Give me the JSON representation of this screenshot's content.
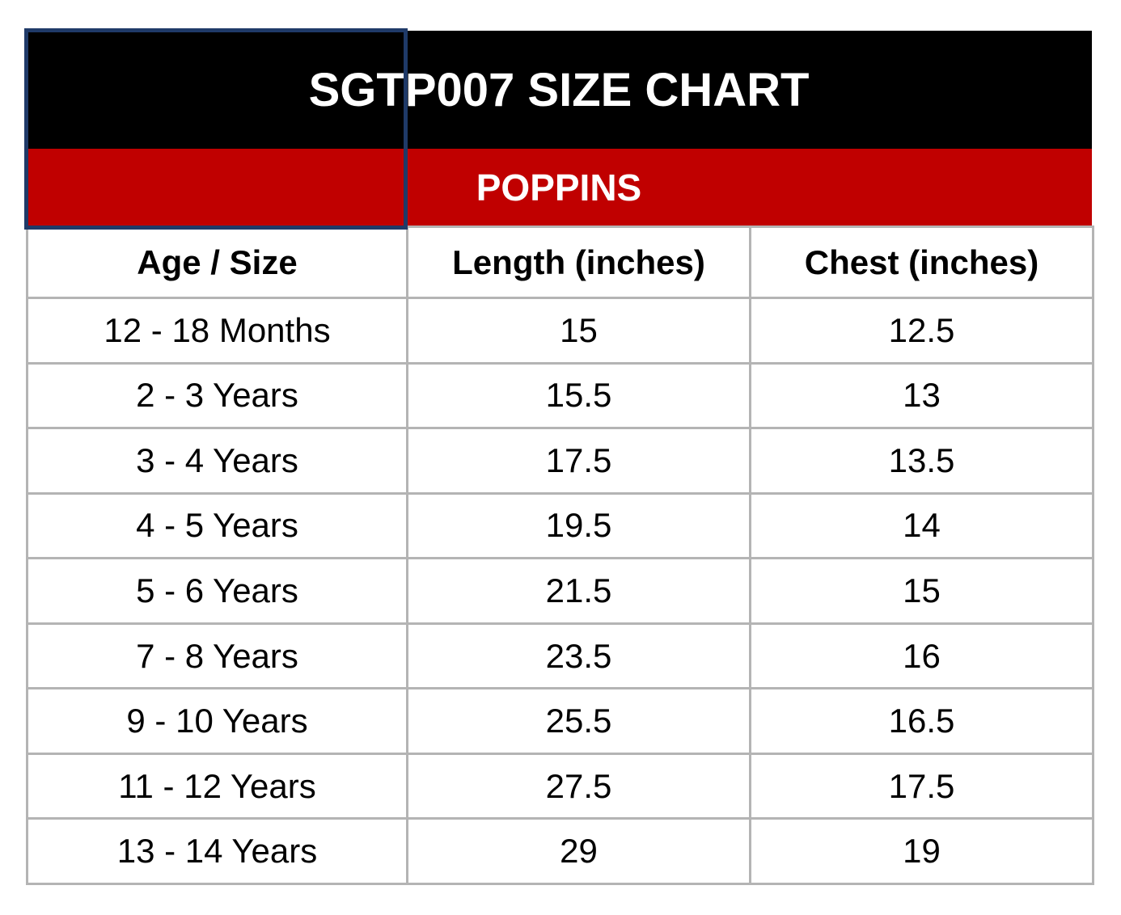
{
  "header": {
    "title": "SGTP007 SIZE CHART",
    "subtitle": "POPPINS"
  },
  "table": {
    "columns": [
      "Age / Size",
      "Length (inches)",
      "Chest (inches)"
    ],
    "rows": [
      [
        "12 - 18 Months",
        15,
        12.5
      ],
      [
        "2 - 3 Years",
        15.5,
        13
      ],
      [
        "3 - 4 Years",
        17.5,
        13.5
      ],
      [
        "4 - 5 Years",
        19.5,
        14
      ],
      [
        "5 - 6 Years",
        21.5,
        15
      ],
      [
        "7 - 8 Years",
        23.5,
        16
      ],
      [
        "9 - 10 Years",
        25.5,
        16.5
      ],
      [
        "11 - 12 Years",
        27.5,
        17.5
      ],
      [
        "13 - 14 Years",
        29,
        19
      ]
    ]
  }
}
